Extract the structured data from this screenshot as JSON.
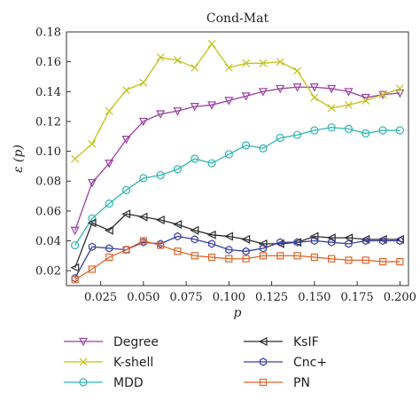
{
  "chart_data": {
    "type": "line",
    "title": "Cond-Mat",
    "xlabel": "p",
    "ylabel": "ε (p)",
    "xlim": [
      0.005,
      0.205
    ],
    "ylim": [
      0.01,
      0.18
    ],
    "xticks": [
      0.025,
      0.05,
      0.075,
      0.1,
      0.125,
      0.15,
      0.175,
      0.2
    ],
    "xtick_labels": [
      "0.025",
      "0.050",
      "0.075",
      "0.100",
      "0.125",
      "0.150",
      "0.175",
      "0.200"
    ],
    "yticks": [
      0.02,
      0.04,
      0.06,
      0.08,
      0.1,
      0.12,
      0.14,
      0.16,
      0.18
    ],
    "ytick_labels": [
      "0.02",
      "0.04",
      "0.06",
      "0.08",
      "0.10",
      "0.12",
      "0.14",
      "0.16",
      "0.18"
    ],
    "grid": false,
    "legend_placement": "bottom",
    "x": [
      0.01,
      0.02,
      0.03,
      0.04,
      0.05,
      0.06,
      0.07,
      0.08,
      0.09,
      0.1,
      0.11,
      0.12,
      0.13,
      0.14,
      0.15,
      0.16,
      0.17,
      0.18,
      0.19,
      0.2
    ],
    "series": [
      {
        "name": "Degree",
        "marker": "triangle-down",
        "color": "#9b3fa3",
        "values": [
          0.047,
          0.079,
          0.092,
          0.108,
          0.12,
          0.125,
          0.127,
          0.13,
          0.131,
          0.134,
          0.137,
          0.14,
          0.142,
          0.143,
          0.143,
          0.142,
          0.14,
          0.136,
          0.138,
          0.139
        ]
      },
      {
        "name": "K-shell",
        "marker": "x",
        "color": "#c2c21a",
        "values": [
          0.095,
          0.105,
          0.127,
          0.141,
          0.146,
          0.163,
          0.161,
          0.156,
          0.172,
          0.156,
          0.159,
          0.159,
          0.16,
          0.154,
          0.136,
          0.129,
          0.131,
          0.134,
          0.138,
          0.142
        ]
      },
      {
        "name": "MDD",
        "marker": "circle",
        "color": "#2fb6b3",
        "values": [
          0.037,
          0.055,
          0.065,
          0.074,
          0.082,
          0.084,
          0.088,
          0.095,
          0.092,
          0.098,
          0.104,
          0.102,
          0.109,
          0.111,
          0.114,
          0.116,
          0.115,
          0.112,
          0.114,
          0.114
        ]
      },
      {
        "name": "KsIF",
        "marker": "triangle-left",
        "color": "#2b2b2b",
        "values": [
          0.022,
          0.052,
          0.047,
          0.058,
          0.056,
          0.054,
          0.051,
          0.047,
          0.044,
          0.043,
          0.041,
          0.038,
          0.038,
          0.039,
          0.043,
          0.042,
          0.042,
          0.041,
          0.041,
          0.041
        ]
      },
      {
        "name": "Cnc+",
        "marker": "hexagon",
        "color": "#3a3fa0",
        "values": [
          0.015,
          0.036,
          0.035,
          0.034,
          0.039,
          0.038,
          0.043,
          0.041,
          0.038,
          0.034,
          0.033,
          0.035,
          0.039,
          0.039,
          0.04,
          0.039,
          0.038,
          0.04,
          0.04,
          0.04
        ]
      },
      {
        "name": "PN",
        "marker": "square",
        "color": "#e0652b",
        "values": [
          0.014,
          0.021,
          0.029,
          0.034,
          0.04,
          0.037,
          0.033,
          0.03,
          0.029,
          0.028,
          0.028,
          0.03,
          0.03,
          0.03,
          0.029,
          0.028,
          0.027,
          0.027,
          0.026,
          0.026
        ]
      }
    ]
  }
}
